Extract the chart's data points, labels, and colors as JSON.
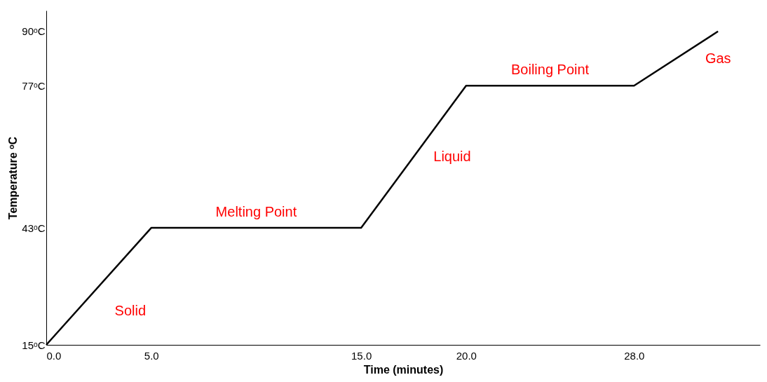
{
  "chart_data": {
    "type": "line",
    "xlabel": "Time (minutes)",
    "ylabel": "Temperature ᵒC",
    "x": [
      0,
      5,
      15,
      20,
      28,
      32
    ],
    "series": [
      {
        "color": "#000000",
        "values": [
          15,
          43,
          43,
          77,
          77,
          90
        ]
      }
    ],
    "xlim": [
      0,
      34
    ],
    "ylim": [
      15,
      95
    ],
    "xticks": [
      {
        "value": 0,
        "label": "0.0"
      },
      {
        "value": 5,
        "label": "5.0"
      },
      {
        "value": 15,
        "label": "15.0"
      },
      {
        "value": 20,
        "label": "20.0"
      },
      {
        "value": 28,
        "label": "28.0"
      }
    ],
    "yticks": [
      {
        "value": 15,
        "label": "15ᵒC"
      },
      {
        "value": 43,
        "label": "43ᵒC"
      },
      {
        "value": 77,
        "label": "77ᵒC"
      },
      {
        "value": 90,
        "label": "90ᵒC"
      }
    ],
    "annotations": [
      "Solid",
      "Melting Point",
      "Liquid",
      "Boiling Point",
      "Gas"
    ],
    "grid": false,
    "marker": "none",
    "line_style": "solid"
  }
}
